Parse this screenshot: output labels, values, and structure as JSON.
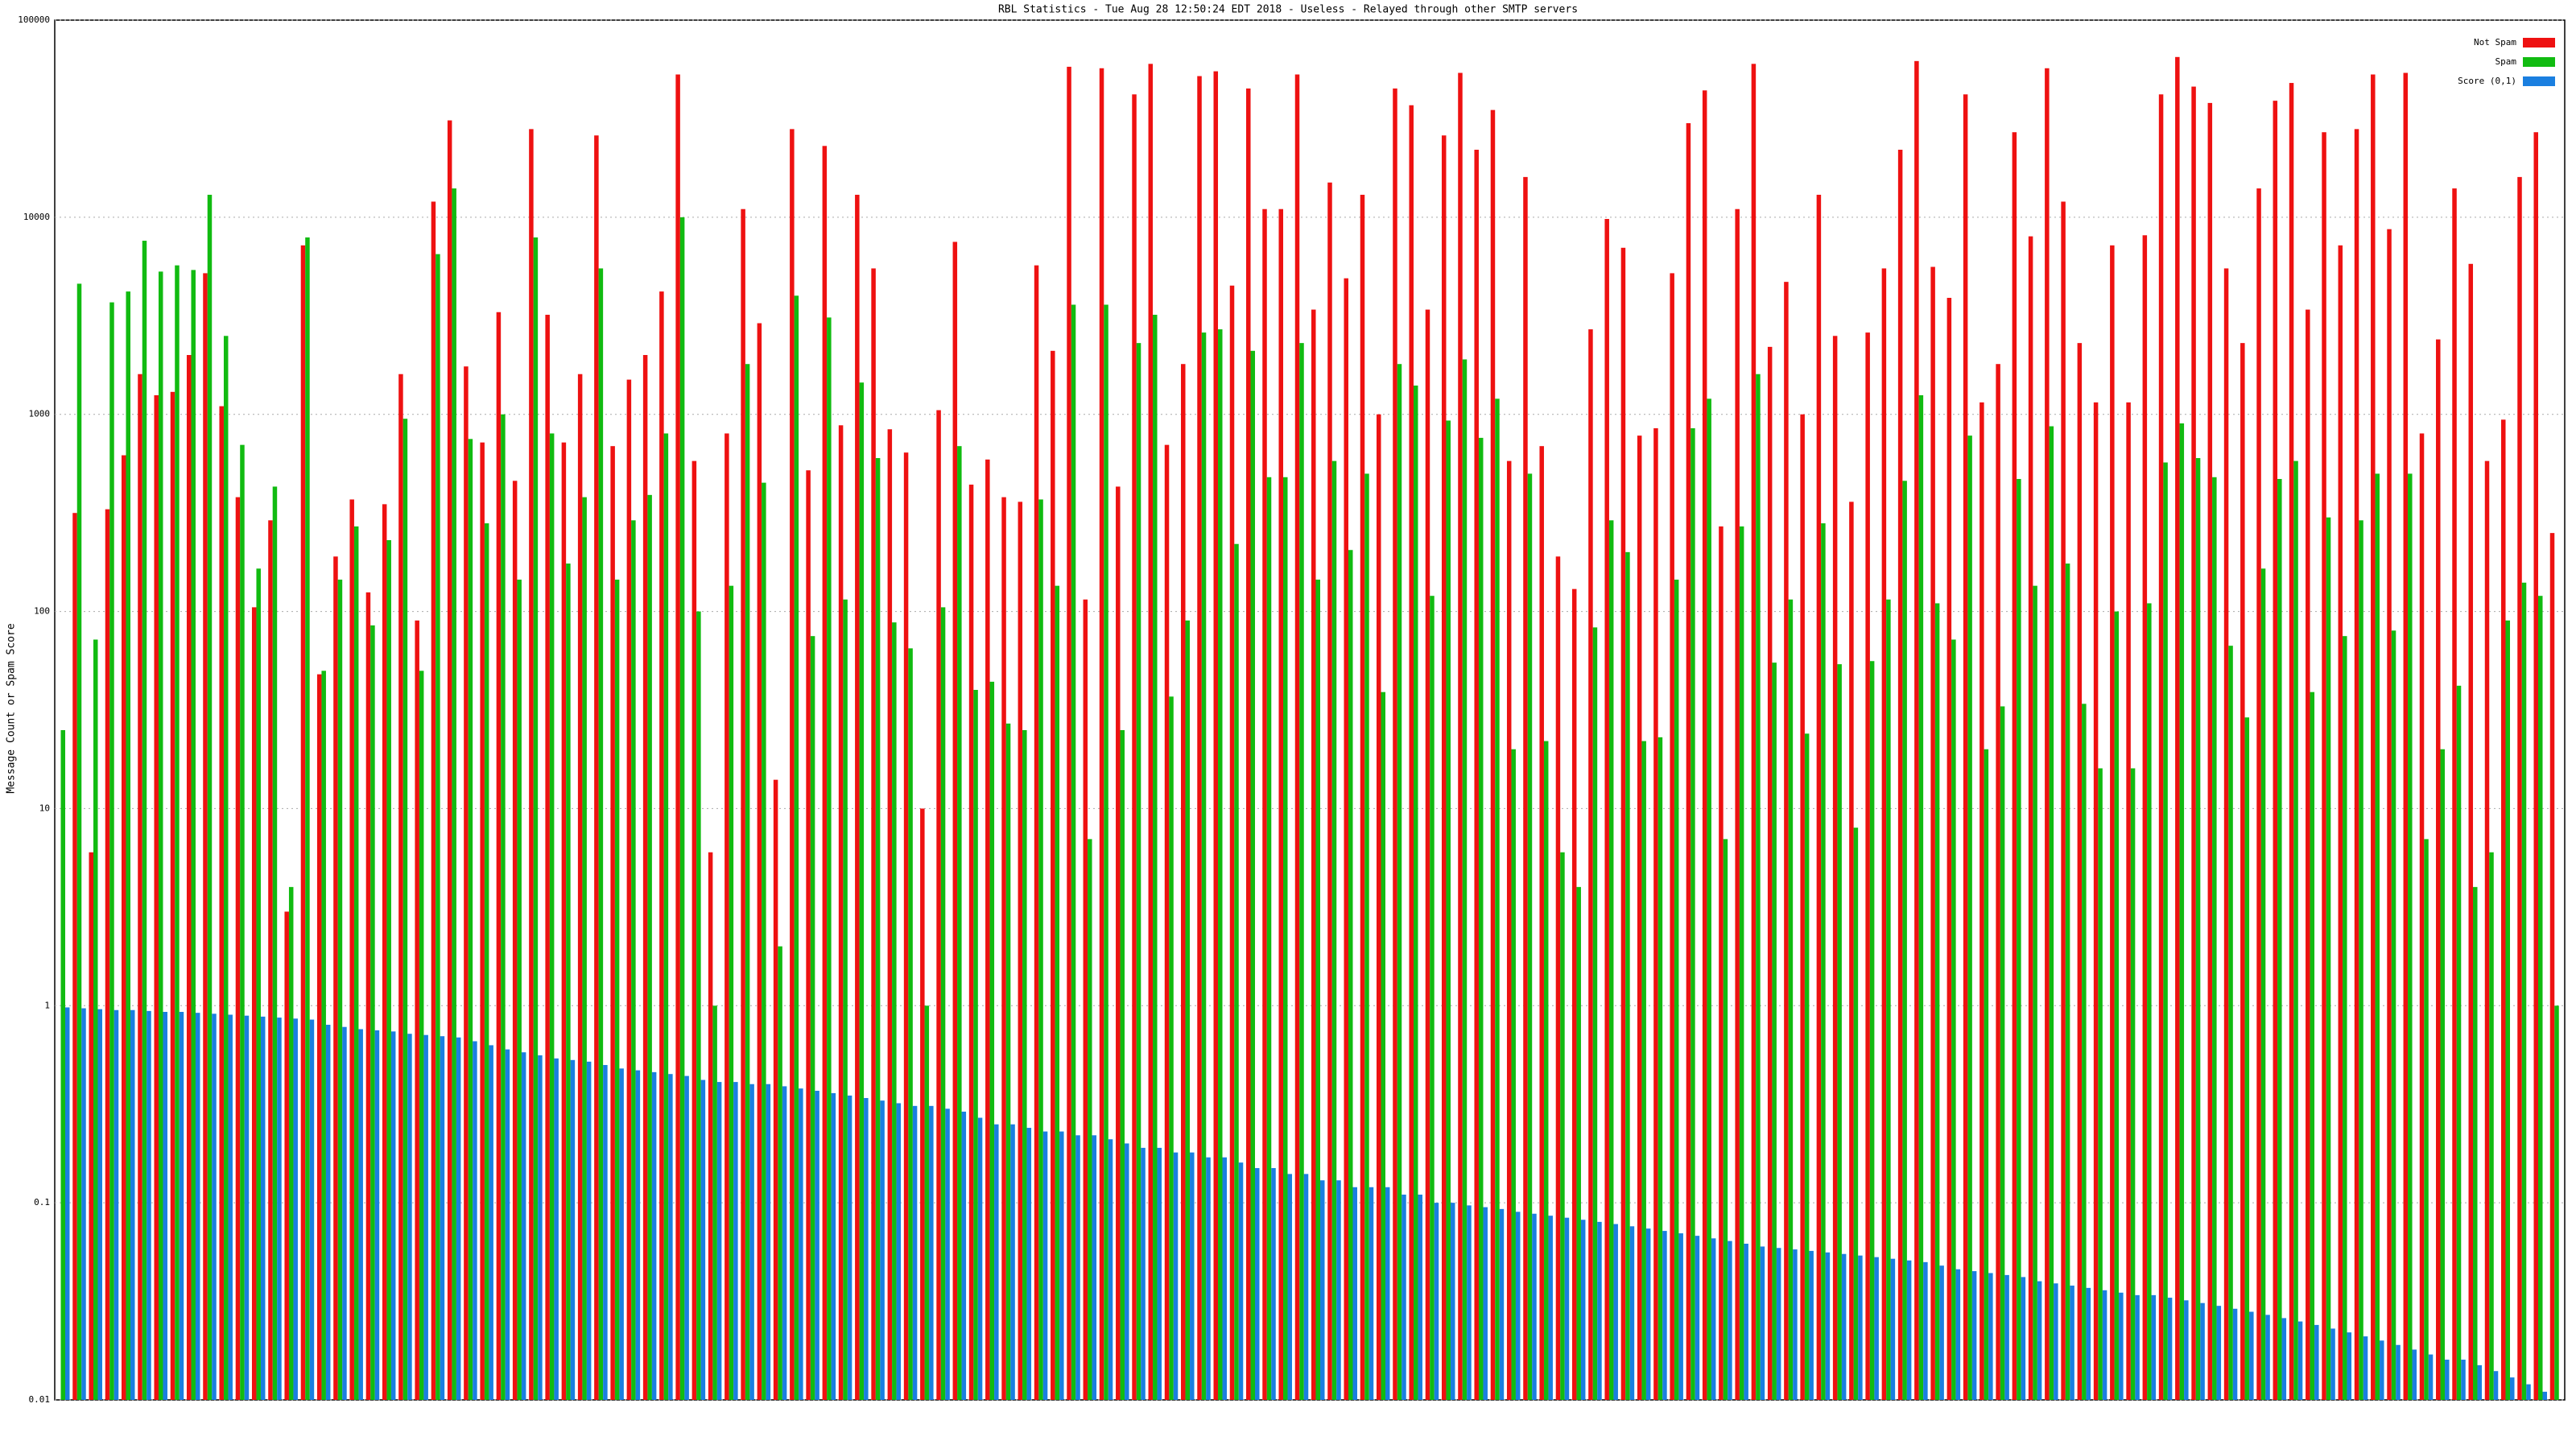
{
  "chart_data": {
    "type": "bar",
    "title": "RBL Statistics - Tue Aug 28 12:50:24 EDT 2018 - Useless - Relayed through other SMTP servers",
    "y_label": "Message Count or Spam Score",
    "log_scale": true,
    "grid": true,
    "legend": "top-right",
    "ylim": [
      0.01,
      100000
    ],
    "yticks": [
      0.01,
      0.1,
      1,
      10,
      100,
      1000,
      10000,
      100000
    ],
    "categories": [
      null,
      null,
      null,
      null,
      null,
      null,
      null,
      null,
      null,
      null,
      null,
      null,
      null,
      null,
      null,
      null,
      null,
      null,
      null,
      null,
      null,
      null,
      null,
      null,
      null,
      null,
      null,
      null,
      null,
      null,
      null,
      null,
      null,
      null,
      null,
      null,
      null,
      null,
      null,
      null,
      null,
      null,
      null,
      null,
      null,
      null,
      null,
      null,
      null,
      null,
      null,
      null,
      null,
      null,
      null,
      null,
      null,
      null,
      null,
      null,
      null,
      null,
      null,
      null,
      null,
      null,
      null,
      null,
      null,
      null,
      null,
      null,
      null,
      null,
      null,
      null,
      null,
      null,
      null,
      null,
      null,
      null,
      null,
      null,
      null,
      null,
      null,
      null,
      null,
      null,
      null,
      null,
      null,
      null,
      null,
      null,
      null,
      null,
      null,
      null,
      null,
      null,
      null,
      null,
      null,
      null,
      null,
      null,
      null,
      null,
      null,
      null,
      null,
      null,
      null,
      null,
      null,
      null,
      null,
      null,
      null,
      null,
      null,
      null,
      null,
      null,
      null,
      null,
      null,
      null,
      null,
      null,
      null,
      null,
      null,
      null,
      null,
      null,
      null,
      null,
      null,
      null,
      null,
      null,
      null,
      null,
      null,
      null,
      null,
      null,
      null,
      null,
      null,
      null
    ],
    "series": [
      {
        "name": "Not Spam",
        "color": "#ee1111",
        "values": [
          null,
          316,
          6,
          330,
          620,
          1600,
          1250,
          1300,
          2000,
          5200,
          1100,
          380,
          105,
          290,
          3,
          7200,
          48,
          190,
          370,
          125,
          350,
          1600,
          90,
          12000,
          31000,
          1750,
          720,
          3300,
          460,
          28000,
          3200,
          720,
          1600,
          26000,
          690,
          1500,
          2000,
          4200,
          53000,
          580,
          6,
          800,
          11000,
          2900,
          14,
          28000,
          520,
          23000,
          880,
          13000,
          5500,
          840,
          640,
          10,
          1050,
          7500,
          440,
          590,
          380,
          360,
          5700,
          2100,
          58000,
          115,
          57000,
          430,
          42000,
          60000,
          700,
          1800,
          52000,
          55000,
          4500,
          45000,
          11000,
          11000,
          53000,
          3400,
          15000,
          4900,
          13000,
          1000,
          45000,
          37000,
          3400,
          26000,
          54000,
          22000,
          35000,
          580,
          16000,
          690,
          190,
          130,
          2700,
          9800,
          7000,
          780,
          850,
          5200,
          30000,
          44000,
          270,
          11000,
          60000,
          2200,
          4700,
          1000,
          13000,
          2500,
          360,
          2600,
          5500,
          22000,
          62000,
          5600,
          3900,
          42000,
          1150,
          1800,
          27000,
          8000,
          57000,
          12000,
          2300,
          1150,
          7200,
          1150,
          8100,
          42000,
          65000,
          46000,
          38000,
          5500,
          2300,
          14000,
          39000,
          48000,
          3400,
          27000,
          7200,
          28000,
          53000,
          8700,
          54000,
          800,
          2400,
          14000,
          5800,
          580,
          940,
          16000,
          27000,
          250
        ]
      },
      {
        "name": "Spam",
        "color": "#11bb11",
        "values": [
          25,
          4600,
          72,
          3700,
          4200,
          7600,
          5300,
          5700,
          5400,
          13000,
          2500,
          700,
          165,
          430,
          4,
          7900,
          50,
          145,
          270,
          85,
          230,
          950,
          50,
          6500,
          14000,
          750,
          280,
          1000,
          145,
          7900,
          800,
          175,
          380,
          5500,
          145,
          290,
          390,
          800,
          10000,
          100,
          1,
          135,
          1800,
          450,
          2,
          4000,
          75,
          3100,
          115,
          1450,
          600,
          88,
          65,
          1,
          105,
          690,
          40,
          44,
          27,
          25,
          370,
          135,
          3600,
          7,
          3600,
          25,
          2300,
          3200,
          37,
          90,
          2600,
          2700,
          220,
          2100,
          480,
          480,
          2300,
          145,
          580,
          205,
          500,
          39,
          1800,
          1400,
          120,
          930,
          1900,
          760,
          1200,
          20,
          500,
          22,
          6,
          4,
          83,
          290,
          200,
          22,
          23,
          145,
          850,
          1200,
          7,
          270,
          1600,
          55,
          115,
          24,
          280,
          54,
          8,
          56,
          115,
          460,
          1250,
          110,
          72,
          780,
          20,
          33,
          470,
          135,
          870,
          175,
          34,
          16,
          100,
          16,
          110,
          570,
          900,
          600,
          480,
          67,
          29,
          165,
          470,
          580,
          39,
          300,
          75,
          290,
          500,
          80,
          500,
          7,
          20,
          42,
          4,
          6,
          90,
          140,
          120,
          1
        ]
      },
      {
        "name": "Score (0,1)",
        "color": "#1a7fe0",
        "values": [
          0.98,
          0.97,
          0.96,
          0.95,
          0.95,
          0.94,
          0.93,
          0.93,
          0.92,
          0.91,
          0.9,
          0.89,
          0.88,
          0.87,
          0.86,
          0.85,
          0.8,
          0.78,
          0.76,
          0.75,
          0.74,
          0.72,
          0.71,
          0.7,
          0.69,
          0.66,
          0.63,
          0.6,
          0.58,
          0.56,
          0.54,
          0.53,
          0.52,
          0.5,
          0.48,
          0.47,
          0.46,
          0.45,
          0.44,
          0.42,
          0.41,
          0.41,
          0.4,
          0.4,
          0.39,
          0.38,
          0.37,
          0.36,
          0.35,
          0.34,
          0.33,
          0.32,
          0.31,
          0.31,
          0.3,
          0.29,
          0.27,
          0.25,
          0.25,
          0.24,
          0.23,
          0.23,
          0.22,
          0.22,
          0.21,
          0.2,
          0.19,
          0.19,
          0.18,
          0.18,
          0.17,
          0.17,
          0.16,
          0.15,
          0.15,
          0.14,
          0.14,
          0.13,
          0.13,
          0.12,
          0.12,
          0.12,
          0.11,
          0.11,
          0.1,
          0.1,
          0.097,
          0.095,
          0.093,
          0.09,
          0.088,
          0.086,
          0.084,
          0.082,
          0.08,
          0.078,
          0.076,
          0.074,
          0.072,
          0.07,
          0.068,
          0.066,
          0.064,
          0.062,
          0.06,
          0.059,
          0.058,
          0.057,
          0.056,
          0.055,
          0.054,
          0.053,
          0.052,
          0.051,
          0.05,
          0.048,
          0.046,
          0.045,
          0.044,
          0.043,
          0.042,
          0.04,
          0.039,
          0.038,
          0.037,
          0.036,
          0.035,
          0.034,
          0.034,
          0.033,
          0.032,
          0.031,
          0.03,
          0.029,
          0.028,
          0.027,
          0.026,
          0.025,
          0.024,
          0.023,
          0.022,
          0.021,
          0.02,
          0.019,
          0.018,
          0.017,
          0.016,
          0.016,
          0.015,
          0.014,
          0.013,
          0.012,
          0.011,
          0.01
        ]
      }
    ]
  }
}
